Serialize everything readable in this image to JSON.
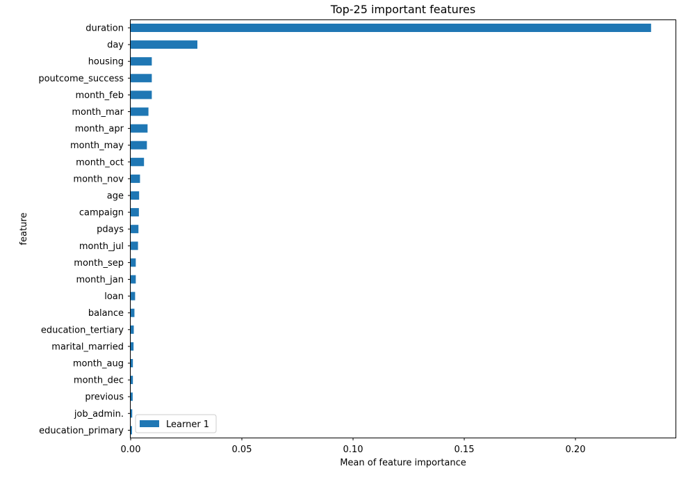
{
  "chart_data": {
    "type": "bar",
    "orientation": "horizontal",
    "title": "Top-25 important features",
    "xlabel": "Mean of feature importance",
    "ylabel": "feature",
    "xlim": [
      0,
      0.245
    ],
    "xticks": [
      0.0,
      0.05,
      0.1,
      0.15,
      0.2
    ],
    "xtick_labels": [
      "0.00",
      "0.05",
      "0.10",
      "0.15",
      "0.20"
    ],
    "grid": false,
    "legend_position": "lower-left",
    "categories": [
      "duration",
      "day",
      "housing",
      "poutcome_success",
      "month_feb",
      "month_mar",
      "month_apr",
      "month_may",
      "month_oct",
      "month_nov",
      "age",
      "campaign",
      "pdays",
      "month_jul",
      "month_sep",
      "month_jan",
      "loan",
      "balance",
      "education_tertiary",
      "marital_married",
      "month_aug",
      "month_dec",
      "previous",
      "job_admin.",
      "education_primary"
    ],
    "series": [
      {
        "name": "Learner 1",
        "color": "#1f77b4",
        "values": [
          0.234,
          0.03,
          0.0095,
          0.0095,
          0.0095,
          0.008,
          0.0076,
          0.0073,
          0.006,
          0.0042,
          0.0038,
          0.0037,
          0.0035,
          0.0033,
          0.0023,
          0.0023,
          0.002,
          0.0017,
          0.0014,
          0.0013,
          0.001,
          0.001,
          0.0009,
          0.0007,
          0.0006
        ]
      }
    ]
  }
}
